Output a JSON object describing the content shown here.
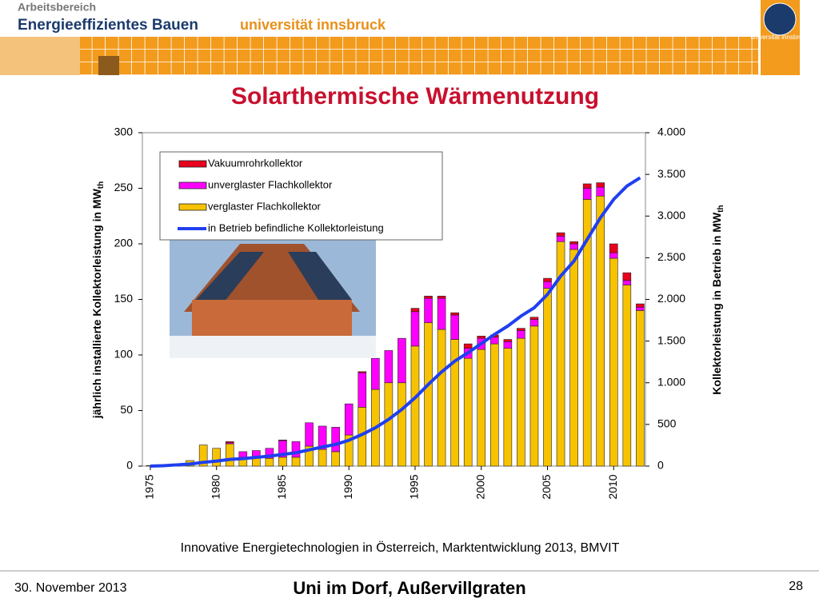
{
  "header": {
    "line1": "Arbeitsbereich",
    "line2": "Energieeffizientes Bauen",
    "university": "universität innsbruck",
    "logo_text": "universität innsbruck"
  },
  "chart_data": {
    "type": "bar",
    "stacked": true,
    "title": "Solarthermische Wärmenutzung",
    "y_label": "jährlich installierte Kollektorleistung in MW",
    "y_label_sub": "th",
    "y2_label": "Kollektorleistung in Betrieb in MW",
    "y2_label_sub": "th",
    "x": [
      1975,
      1976,
      1977,
      1978,
      1979,
      1980,
      1981,
      1982,
      1983,
      1984,
      1985,
      1986,
      1987,
      1988,
      1989,
      1990,
      1991,
      1992,
      1993,
      1994,
      1995,
      1996,
      1997,
      1998,
      1999,
      2000,
      2001,
      2002,
      2003,
      2004,
      2005,
      2006,
      2007,
      2008,
      2009,
      2010,
      2011,
      2012
    ],
    "xlim": [
      1974.4,
      2012.4
    ],
    "xticks": [
      1975,
      1980,
      1985,
      1990,
      1995,
      2000,
      2005,
      2010
    ],
    "ylim": [
      0,
      300
    ],
    "yticks": [
      0,
      50,
      100,
      150,
      200,
      250,
      300
    ],
    "y2lim": [
      0,
      4000
    ],
    "y2ticks": [
      0,
      500,
      {
        "value": 1000,
        "label": "1.000"
      },
      {
        "value": 1500,
        "label": "1.500"
      },
      {
        "value": 2000,
        "label": "2.000"
      },
      {
        "value": 2500,
        "label": "2.500"
      },
      {
        "value": 3000,
        "label": "3.000"
      },
      {
        "value": 3500,
        "label": "3.500"
      },
      {
        "value": 4000,
        "label": "4.000"
      }
    ],
    "grid": false,
    "series": [
      {
        "name": "Vakuumrohrkollektor",
        "color": "#e8001c",
        "values": [
          0,
          0,
          0,
          0,
          0,
          0,
          1,
          0,
          0,
          0,
          0.5,
          0,
          0,
          0,
          0,
          0,
          1,
          0,
          0,
          0,
          3,
          2,
          2,
          2,
          4,
          2,
          2,
          2,
          2,
          2,
          3,
          3,
          2,
          4,
          4,
          8,
          7,
          3
        ]
      },
      {
        "name": "unverglaster Flachkollektor",
        "color": "#ff00ff",
        "values": [
          0,
          0,
          0,
          0,
          0,
          0,
          1,
          5,
          6,
          9,
          15,
          14,
          21,
          21,
          22,
          28,
          31,
          28,
          29,
          40,
          31,
          22,
          28,
          22,
          9,
          10,
          6,
          6,
          7,
          6,
          6,
          5,
          5,
          10,
          8,
          5,
          4,
          3
        ]
      },
      {
        "name": "verglaster Flachkollektor",
        "color": "#f7c200",
        "values": [
          0.5,
          1,
          2,
          5,
          19,
          16,
          20,
          8,
          8,
          7,
          8,
          8,
          18,
          15,
          13,
          28,
          53,
          69,
          75,
          75,
          108,
          129,
          123,
          114,
          97,
          105,
          110,
          106,
          115,
          126,
          160,
          202,
          195,
          240,
          243,
          187,
          163,
          140
        ]
      },
      {
        "name": "in Betrieb befindliche Kollektorleistung",
        "color": "#1f3ff0",
        "type": "line",
        "axis": "y2",
        "values": [
          0,
          5,
          15,
          25,
          45,
          60,
          80,
          90,
          105,
          120,
          140,
          160,
          195,
          230,
          260,
          310,
          380,
          460,
          560,
          680,
          820,
          980,
          1130,
          1260,
          1360,
          1470,
          1580,
          1680,
          1800,
          1900,
          2060,
          2280,
          2460,
          2720,
          2980,
          3200,
          3360,
          3460
        ]
      }
    ]
  },
  "source": "Innovative Energietechnologien in Österreich, Marktentwicklung 2013, BMVIT",
  "footer": {
    "date": "30. November 2013",
    "title": "Uni im Dorf, Außervillgraten",
    "page": "28"
  }
}
